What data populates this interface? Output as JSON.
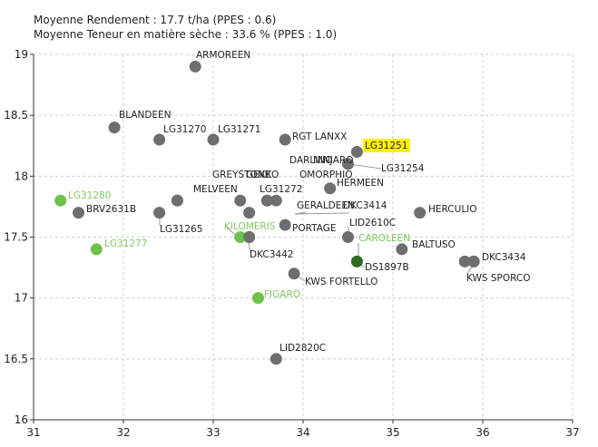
{
  "header": {
    "line1": "Moyenne Rendement : 17.7 t/ha (PPES : 0.6)",
    "line2": "Moyenne Teneur en matière sèche : 33.6 % (PPES : 1.0)"
  },
  "colors": {
    "grey_point": "#6e6e6e",
    "green_point": "#6cc24a",
    "dark_green_point": "#2e6b1f",
    "green_label": "#7dc95e",
    "highlight": "#fff200",
    "grid": "#cccccc",
    "leader": "#9a9a9a"
  },
  "chart_data": {
    "type": "scatter",
    "xlim": [
      31,
      37
    ],
    "ylim": [
      16,
      19
    ],
    "x_ticks": [
      "31",
      "32",
      "33",
      "34",
      "35",
      "36",
      "37"
    ],
    "y_ticks": [
      "16",
      "16.5",
      "17",
      "17.5",
      "18",
      "18.5",
      "19"
    ],
    "grid": true,
    "points": [
      {
        "label": "ARMOREEN",
        "x": 32.8,
        "y": 18.9,
        "color": "grey"
      },
      {
        "label": "BLANDEEN",
        "x": 31.9,
        "y": 18.4,
        "color": "grey"
      },
      {
        "label": "LG31270",
        "x": 32.4,
        "y": 18.3,
        "color": "grey"
      },
      {
        "label": "LG31271",
        "x": 33.0,
        "y": 18.3,
        "color": "grey"
      },
      {
        "label": "RGT LANXX",
        "x": 33.8,
        "y": 18.3,
        "color": "grey"
      },
      {
        "label": "LG31251",
        "x": 34.6,
        "y": 18.2,
        "color": "grey",
        "highlight": true
      },
      {
        "label": "DARLINO",
        "x": 34.5,
        "y": 18.1,
        "color": "grey"
      },
      {
        "label": "NINJARO",
        "x": 34.5,
        "y": 18.1,
        "color": "grey"
      },
      {
        "label": "LG31254",
        "x": 34.5,
        "y": 18.1,
        "color": "grey"
      },
      {
        "label": "HERMEEN",
        "x": 34.3,
        "y": 17.9,
        "color": "grey"
      },
      {
        "label": "GREYSTONE",
        "x": 32.7,
        "y": 17.9,
        "color": "grey"
      },
      {
        "label": "GEKKO",
        "x": 33.4,
        "y": 17.9,
        "color": "grey"
      },
      {
        "label": "OMORPHIO",
        "x": 33.5,
        "y": 17.8,
        "color": "grey"
      },
      {
        "label": "MELVEEN",
        "x": 32.6,
        "y": 17.8,
        "color": "grey"
      },
      {
        "label": "LG31272",
        "x": 33.6,
        "y": 17.8,
        "color": "grey"
      },
      {
        "label": "GERALDEEN",
        "x": 33.7,
        "y": 17.8,
        "color": "grey"
      },
      {
        "label": "DKC3414",
        "x": 33.9,
        "y": 17.7,
        "color": "grey"
      },
      {
        "label": "LG31280",
        "x": 31.3,
        "y": 17.8,
        "color": "green"
      },
      {
        "label": "BRV2631B",
        "x": 31.5,
        "y": 17.7,
        "color": "grey"
      },
      {
        "label": "LG31265",
        "x": 32.4,
        "y": 17.7,
        "color": "grey"
      },
      {
        "label": "HERCULIO",
        "x": 35.3,
        "y": 17.7,
        "color": "grey"
      },
      {
        "label": "LID2610C",
        "x": 34.5,
        "y": 17.5,
        "color": "grey"
      },
      {
        "label": "PORTAGE",
        "x": 33.8,
        "y": 17.6,
        "color": "grey"
      },
      {
        "label": "KILOMERIS",
        "x": 33.3,
        "y": 17.5,
        "color": "green"
      },
      {
        "label": "DKC3442",
        "x": 33.4,
        "y": 17.5,
        "color": "grey"
      },
      {
        "label": "CAROLEEN",
        "x": 34.6,
        "y": 17.3,
        "color": "green"
      },
      {
        "label": "DS1897B",
        "x": 34.6,
        "y": 17.3,
        "color": "dark_green"
      },
      {
        "label": "BALTUSO",
        "x": 35.1,
        "y": 17.4,
        "color": "grey"
      },
      {
        "label": "DKC3434",
        "x": 35.9,
        "y": 17.3,
        "color": "grey"
      },
      {
        "label": "KWS SPORCO",
        "x": 35.8,
        "y": 17.3,
        "color": "grey"
      },
      {
        "label": "LG31277",
        "x": 31.7,
        "y": 17.4,
        "color": "green"
      },
      {
        "label": "KWS FORTELLO",
        "x": 33.9,
        "y": 17.2,
        "color": "grey"
      },
      {
        "label": "FIGARO",
        "x": 33.5,
        "y": 17.0,
        "color": "green"
      },
      {
        "label": "LID2820C",
        "x": 33.7,
        "y": 16.5,
        "color": "grey"
      }
    ],
    "extra_points": [
      {
        "x": 32.6,
        "y": 17.8,
        "color": "grey"
      },
      {
        "x": 33.3,
        "y": 17.8,
        "color": "grey"
      },
      {
        "x": 33.6,
        "y": 17.8,
        "color": "grey"
      },
      {
        "x": 33.7,
        "y": 17.8,
        "color": "grey"
      },
      {
        "x": 33.4,
        "y": 17.7,
        "color": "grey"
      },
      {
        "x": 33.4,
        "y": 17.5,
        "color": "grey"
      },
      {
        "x": 35.9,
        "y": 17.3,
        "color": "grey"
      }
    ]
  }
}
